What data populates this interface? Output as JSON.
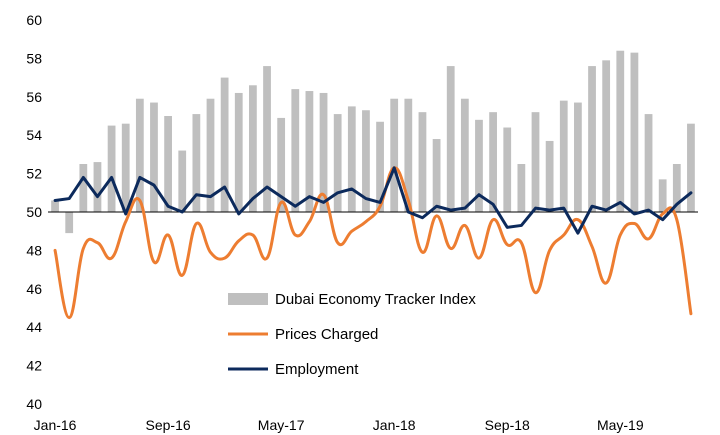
{
  "chart_data": {
    "type": "bar",
    "title": "",
    "xlabel": "",
    "ylabel": "",
    "ylim": [
      40,
      60
    ],
    "baseline": 50,
    "yticks": [
      40,
      42,
      44,
      46,
      48,
      50,
      52,
      54,
      56,
      58,
      60
    ],
    "ytick_labels": [
      "40",
      "42",
      "44",
      "46",
      "48",
      "50",
      "52",
      "54",
      "56",
      "58",
      "60"
    ],
    "xtick_labels": [
      "Jan-16",
      "Sep-16",
      "May-17",
      "Jan-18",
      "Sep-18",
      "May-19"
    ],
    "xtick_index": [
      0,
      8,
      16,
      24,
      32,
      40
    ],
    "grid": false,
    "legend_position": "lower-center",
    "categories": [
      "Jan-16",
      "Feb-16",
      "Mar-16",
      "Apr-16",
      "May-16",
      "Jun-16",
      "Jul-16",
      "Aug-16",
      "Sep-16",
      "Oct-16",
      "Nov-16",
      "Dec-16",
      "Jan-17",
      "Feb-17",
      "Mar-17",
      "Apr-17",
      "May-17",
      "Jun-17",
      "Jul-17",
      "Aug-17",
      "Sep-17",
      "Oct-17",
      "Nov-17",
      "Dec-17",
      "Jan-18",
      "Feb-18",
      "Mar-18",
      "Apr-18",
      "May-18",
      "Jun-18",
      "Jul-18",
      "Aug-18",
      "Sep-18",
      "Oct-18",
      "Nov-18",
      "Dec-18",
      "Jan-19",
      "Feb-19",
      "Mar-19",
      "Apr-19",
      "May-19",
      "Jun-19",
      "Jul-19",
      "Aug-19",
      "Sep-19",
      "Oct-19"
    ],
    "series": [
      {
        "name": "Dubai Economy Tracker Index",
        "type": "bar",
        "color": "#bfbfbf",
        "values": [
          50.6,
          48.9,
          52.5,
          52.6,
          54.5,
          54.6,
          55.9,
          55.7,
          55.0,
          53.2,
          55.1,
          55.9,
          57.0,
          56.2,
          56.6,
          57.6,
          54.9,
          56.4,
          56.3,
          56.2,
          55.1,
          55.5,
          55.3,
          54.7,
          55.9,
          55.9,
          55.2,
          53.8,
          57.6,
          55.9,
          54.8,
          55.2,
          54.4,
          52.5,
          55.2,
          53.7,
          55.8,
          55.7,
          57.6,
          57.9,
          58.4,
          58.3,
          55.1,
          51.7,
          52.5,
          54.6
        ]
      },
      {
        "name": "Prices Charged",
        "type": "line",
        "color": "#ed7d31",
        "values": [
          48.0,
          44.5,
          48.1,
          48.4,
          47.6,
          49.5,
          50.6,
          47.4,
          48.8,
          46.7,
          49.4,
          47.9,
          47.6,
          48.5,
          48.8,
          47.6,
          50.5,
          48.8,
          49.5,
          50.9,
          48.4,
          49.0,
          49.5,
          50.3,
          52.3,
          50.6,
          47.9,
          49.8,
          48.1,
          49.3,
          47.6,
          49.6,
          48.3,
          48.4,
          45.8,
          48.0,
          48.8,
          49.6,
          48.2,
          46.3,
          48.8,
          49.4,
          48.6,
          49.9,
          49.6,
          44.7
        ]
      },
      {
        "name": "Employment",
        "type": "line",
        "color": "#0c2a5c",
        "values": [
          50.6,
          50.7,
          51.8,
          50.8,
          51.8,
          49.9,
          51.8,
          51.4,
          50.3,
          50.0,
          50.9,
          50.8,
          51.3,
          49.9,
          50.7,
          51.3,
          50.8,
          50.3,
          50.8,
          50.5,
          51.0,
          51.2,
          50.7,
          50.5,
          52.3,
          50.0,
          49.7,
          50.3,
          50.1,
          50.2,
          50.9,
          50.4,
          49.2,
          49.3,
          50.2,
          50.1,
          50.2,
          48.9,
          50.3,
          50.1,
          50.5,
          49.9,
          50.1,
          49.6,
          50.4,
          51.0
        ]
      }
    ]
  }
}
